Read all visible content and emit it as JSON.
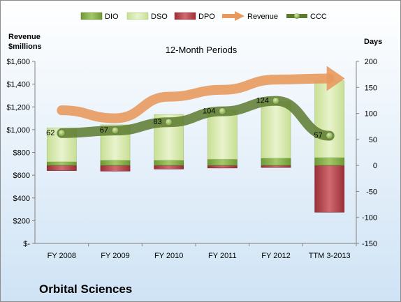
{
  "chart_data": {
    "type": "bar",
    "title": "12-Month Periods",
    "company": "Orbital Sciences",
    "left_axis_label_lines": [
      "Revenue",
      "$millions"
    ],
    "right_axis_label": "Days",
    "categories": [
      "FY 2008",
      "FY 2009",
      "FY 2010",
      "FY 2011",
      "FY 2012",
      "TTM 3-2013"
    ],
    "left_ticks": [
      "$-",
      "$200",
      "$400",
      "$600",
      "$800",
      "$1,000",
      "$1,200",
      "$1,400",
      "$1,600"
    ],
    "left_ylim": [
      0,
      1600
    ],
    "right_ticks": [
      "-150",
      "-100",
      "-50",
      "0",
      "50",
      "100",
      "150",
      "200"
    ],
    "right_ylim": [
      -150,
      200
    ],
    "legend": [
      "DIO",
      "DSO",
      "DPO",
      "Revenue",
      "CCC"
    ],
    "series": [
      {
        "name": "DIO",
        "axis": "right",
        "values": [
          7,
          10,
          10,
          12,
          14,
          15
        ]
      },
      {
        "name": "DSO",
        "axis": "right",
        "values": [
          65,
          68,
          88,
          94,
          108,
          148
        ]
      },
      {
        "name": "DPO",
        "axis": "right",
        "values": [
          -10,
          -11,
          -7,
          -5,
          -4,
          -90
        ]
      },
      {
        "name": "Revenue",
        "axis": "left",
        "values": [
          1170,
          1100,
          1290,
          1350,
          1440,
          1450
        ]
      },
      {
        "name": "CCC",
        "axis": "right",
        "values": [
          62,
          67,
          83,
          104,
          124,
          57
        ]
      }
    ],
    "ccc_labels": [
      "62",
      "67",
      "83",
      "104",
      "124",
      "57"
    ],
    "colors": {
      "DIO": "#7fa93e",
      "DSO": "#d6e8a8",
      "DPO": "#b4434a",
      "Revenue": "#e89a5e",
      "CCC": "#5c7a2e",
      "background_top": "#ffffff",
      "background_bottom": "#cfe3f5"
    },
    "grid": false,
    "legend_position": "top"
  }
}
